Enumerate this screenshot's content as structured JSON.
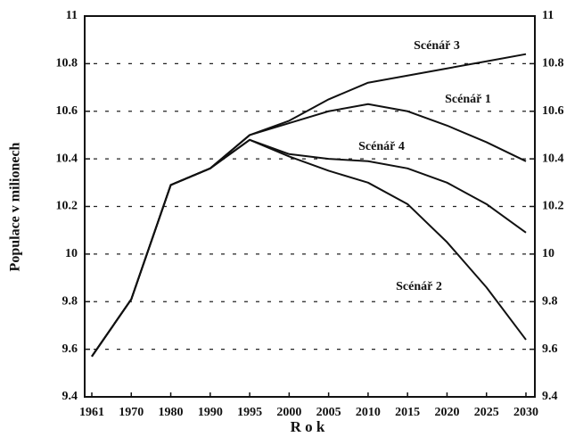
{
  "chart_data": {
    "type": "line",
    "x_label": "R o k",
    "y_label": "Populace v milionech",
    "categories": [
      "1961",
      "1970",
      "1980",
      "1990",
      "1995",
      "2000",
      "2005",
      "2010",
      "2015",
      "2020",
      "2025",
      "2030"
    ],
    "series": [
      {
        "name": "Scénář 3",
        "color": "#111111",
        "values": [
          9.57,
          9.81,
          10.29,
          10.36,
          10.5,
          10.56,
          10.65,
          10.72,
          10.75,
          10.78,
          10.81,
          10.84
        ]
      },
      {
        "name": "Scénář 1",
        "color": "#111111",
        "values": [
          9.57,
          9.81,
          10.29,
          10.36,
          10.5,
          10.55,
          10.6,
          10.63,
          10.6,
          10.54,
          10.47,
          10.39
        ]
      },
      {
        "name": "Scénář 4",
        "color": "#111111",
        "values": [
          9.57,
          9.81,
          10.29,
          10.36,
          10.48,
          10.42,
          10.4,
          10.39,
          10.36,
          10.3,
          10.21,
          10.09
        ]
      },
      {
        "name": "Scénář 2",
        "color": "#111111",
        "values": [
          9.57,
          9.81,
          10.29,
          10.36,
          10.48,
          10.41,
          10.35,
          10.3,
          10.21,
          10.05,
          9.86,
          9.64
        ]
      }
    ],
    "ylim": [
      9.4,
      11
    ],
    "yticks": [
      9.4,
      9.6,
      9.8,
      10,
      10.2,
      10.4,
      10.6,
      10.8,
      11
    ],
    "y2lim": [
      9.4,
      11
    ],
    "y2ticks": [
      9.4,
      9.6,
      9.8,
      10,
      10.2,
      10.4,
      10.6,
      10.8,
      11
    ],
    "grid": true
  }
}
